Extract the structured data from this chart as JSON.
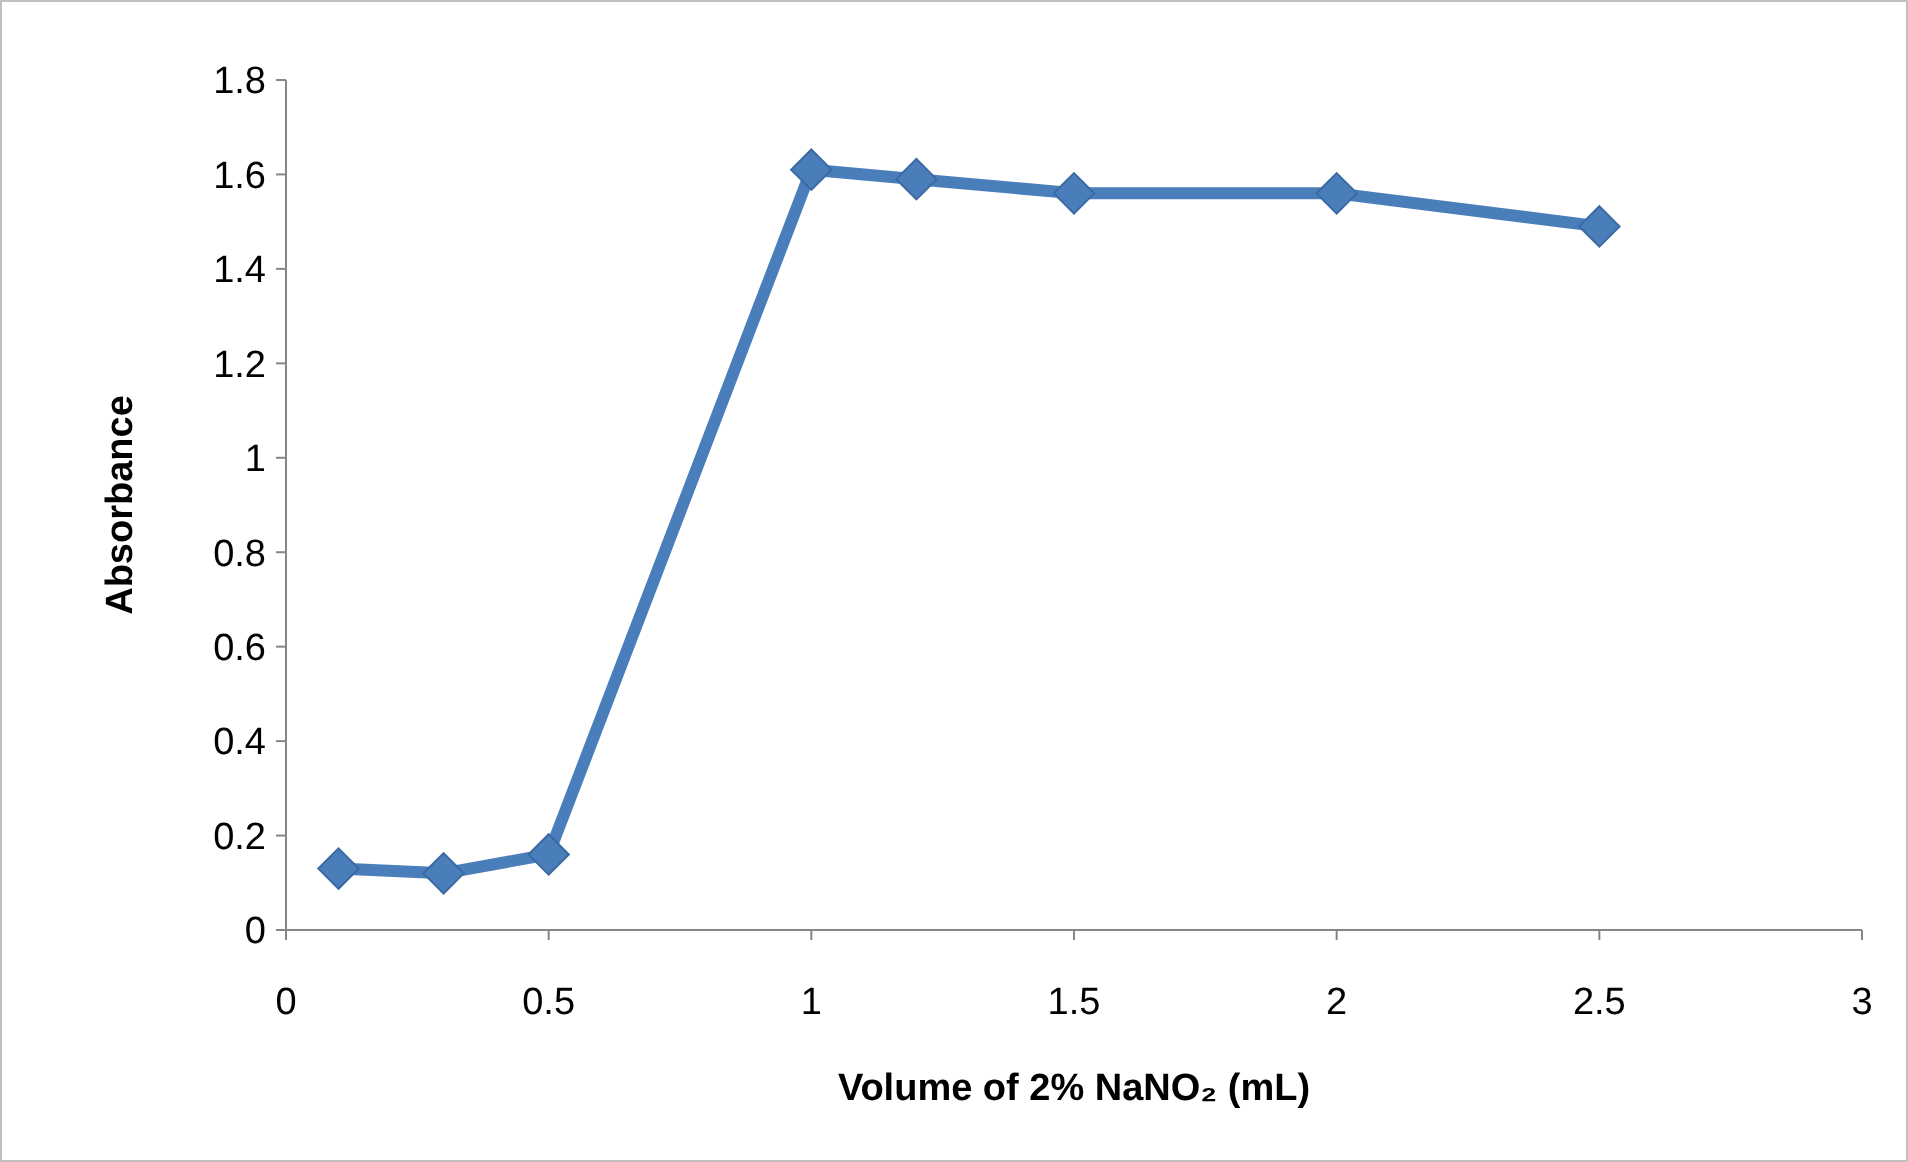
{
  "chart_data": {
    "type": "line",
    "xlabel": "Volume of 2% NaNO₂ (mL)",
    "ylabel": "Absorbance",
    "x": [
      0.1,
      0.3,
      0.5,
      1,
      1.2,
      1.5,
      2,
      2.5
    ],
    "series": [
      {
        "color": "#4a7ebb",
        "values": [
          0.13,
          0.12,
          0.16,
          1.61,
          1.59,
          1.56,
          1.56,
          1.49
        ]
      }
    ],
    "xlim": [
      0,
      3
    ],
    "xticks": [
      0,
      0.5,
      1,
      1.5,
      2,
      2.5,
      3
    ],
    "ylim": [
      0,
      1.8
    ],
    "yticks": [
      0,
      0.2,
      0.4,
      0.6,
      0.8,
      1,
      1.2,
      1.4,
      1.6,
      1.8
    ],
    "marker": "diamond",
    "line_style": "solid",
    "grid": false
  }
}
